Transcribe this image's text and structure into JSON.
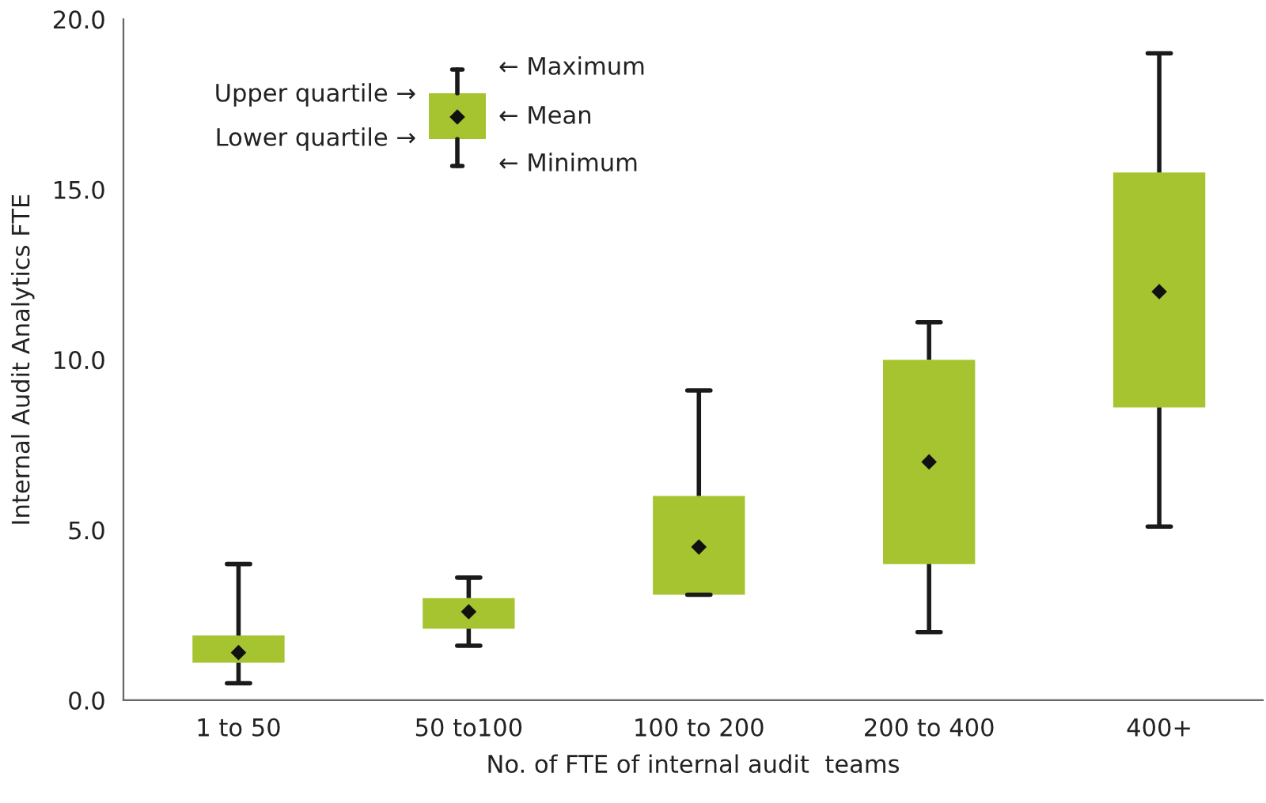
{
  "chart_data": {
    "type": "box",
    "xlabel": "No. of FTE of internal audit  teams",
    "ylabel": "Internal Audit Analytics FTE",
    "categories": [
      "1 to 50",
      "50 to100",
      "100 to 200",
      "200 to 400",
      "400+"
    ],
    "color": "#a6c42f",
    "boxes": [
      {
        "low": 0.5,
        "q1": 1.1,
        "q3": 1.9,
        "high": 4.0,
        "mean": 1.4
      },
      {
        "low": 1.6,
        "q1": 2.1,
        "q3": 3.0,
        "high": 3.6,
        "mean": 2.6
      },
      {
        "low": 3.1,
        "q1": 3.1,
        "q3": 6.0,
        "high": 9.1,
        "mean": 4.5
      },
      {
        "low": 2.0,
        "q1": 4.0,
        "q3": 10.0,
        "high": 11.1,
        "mean": 7.0
      },
      {
        "low": 5.1,
        "q1": 8.6,
        "q3": 15.5,
        "high": 19.0,
        "mean": 12.0
      }
    ],
    "ylim": [
      0,
      20
    ],
    "yticks": [
      {
        "value": 0,
        "label": "0.0"
      },
      {
        "value": 5,
        "label": "5.0"
      },
      {
        "value": 10,
        "label": "10.0"
      },
      {
        "value": 15,
        "label": "15.0"
      },
      {
        "value": 20,
        "label": "20.0"
      }
    ],
    "grid": false,
    "legend": false,
    "annotations": [
      "Upper quartile →",
      "Lower quartile →",
      "← Maximum",
      "← Mean",
      "← Minimum"
    ]
  }
}
